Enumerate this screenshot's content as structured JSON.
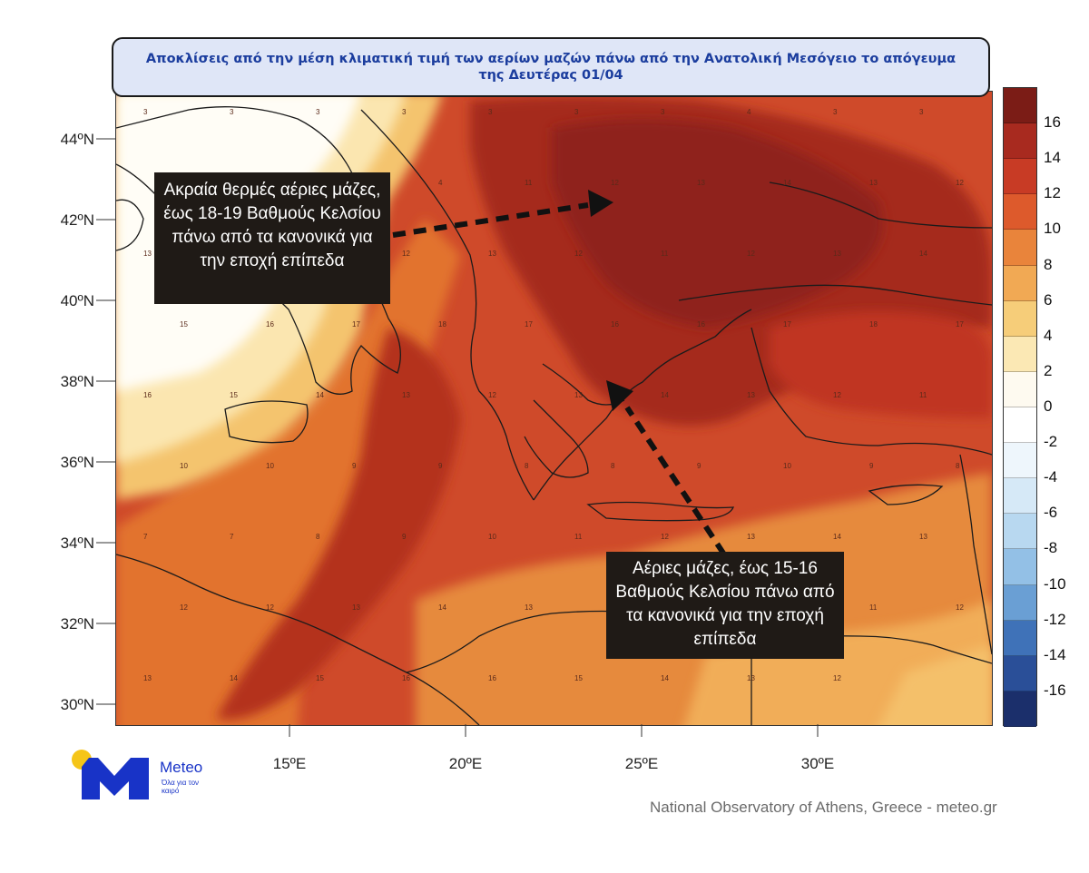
{
  "title": "Αποκλίσεις από την μέση κλιματική τιμή των αερίων μαζών πάνω από την Ανατολική Μεσόγειο το απόγευμα της Δευτέρας 01/04",
  "callouts": {
    "left": "Ακραία θερμές αέριες μάζες, έως 18-19 Βαθμούς Κελσίου πάνω από τα κανονικά για την εποχή επίπεδα",
    "right": "Αέριες μάζες, έως 15-16 Βαθμούς Κελσίου πάνω από τα κανονικά για την εποχή επίπεδα"
  },
  "axes": {
    "lat_labels": [
      "44ºN",
      "42ºN",
      "40ºN",
      "38ºN",
      "36ºN",
      "34ºN",
      "32ºN",
      "30ºN"
    ],
    "lon_labels": [
      "15ºE",
      "20ºE",
      "25ºE",
      "30ºE"
    ]
  },
  "colorbar": {
    "labels": [
      "16",
      "14",
      "12",
      "10",
      "8",
      "6",
      "4",
      "2",
      "0",
      "-2",
      "-4",
      "-6",
      "-8",
      "-10",
      "-12",
      "-14",
      "-16"
    ],
    "colors": [
      "#7b1c16",
      "#a82a1f",
      "#c83b25",
      "#dd5a2c",
      "#e9843b",
      "#f1a954",
      "#f6cd79",
      "#fbe8b4",
      "#fefaf0",
      "#ffffff",
      "#eef6fc",
      "#d6e9f7",
      "#b8d8f0",
      "#93c0e6",
      "#6a9fd4",
      "#3f72b8",
      "#2a4f98",
      "#1b2f6b"
    ]
  },
  "logo": {
    "name": "Meteo",
    "tagline": "Όλα για τον καιρό"
  },
  "credit": "National Observatory of Athens, Greece - meteo.gr",
  "map_numbers": [
    "3",
    "3",
    "3",
    "3",
    "3",
    "3",
    "3",
    "4",
    "3",
    "3",
    "3",
    "5",
    "5",
    "4",
    "11",
    "12",
    "13",
    "14",
    "13",
    "12",
    "13",
    "12",
    "11",
    "12",
    "13",
    "12",
    "11",
    "12",
    "13",
    "14",
    "15",
    "16",
    "17",
    "18",
    "17",
    "16",
    "16",
    "17",
    "18",
    "17",
    "16",
    "15",
    "14",
    "13",
    "12",
    "13",
    "14",
    "13",
    "12",
    "11",
    "10",
    "10",
    "9",
    "9",
    "8",
    "8",
    "9",
    "10",
    "9",
    "8",
    "7",
    "7",
    "8",
    "9",
    "10",
    "11",
    "12",
    "13",
    "14",
    "13",
    "12",
    "12",
    "13",
    "14",
    "13",
    "12",
    "11",
    "10",
    "11",
    "12",
    "13",
    "14",
    "15",
    "16",
    "16",
    "15",
    "14",
    "13",
    "12"
  ]
}
